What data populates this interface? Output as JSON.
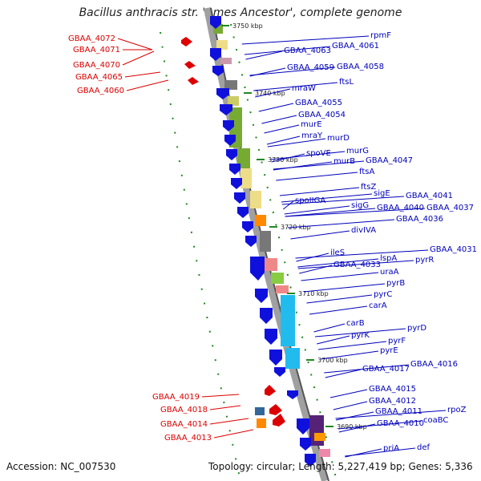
{
  "title": "Bacillus anthracis str. 'Ames Ancestor', complete genome",
  "footer": {
    "accession": "Accession: NC_007530",
    "summary": "Topology: circular; Length: 5,227,419 bp; Genes: 5,336"
  },
  "colors": {
    "left_label": "#dd0000",
    "right_label": "#0000bb",
    "backbone": "#a0a0a0",
    "gene_arrow_forward": "#dd0000",
    "gene_arrow_reverse": "#1010dd",
    "tick": "#228822"
  },
  "scale_ticks": [
    "3750 kbp",
    "3740 kbp",
    "3730 kbp",
    "3720 kbp",
    "3710 kbp",
    "3700 kbp",
    "3690 kbp"
  ],
  "left_labels": [
    "GBAA_4072",
    "GBAA_4071",
    "GBAA_4070",
    "GBAA_4065",
    "GBAA_4060",
    "GBAA_4019",
    "GBAA_4018",
    "GBAA_4014",
    "GBAA_4013"
  ],
  "right_labels": [
    "rpmF",
    "GBAA_4061",
    "GBAA_4063",
    "GBAA_4059",
    "GBAA_4058",
    "ftsL",
    "mraW",
    "GBAA_4055",
    "GBAA_4054",
    "murE",
    "mraY",
    "murD",
    "spoVE",
    "murG",
    "murB",
    "GBAA_4047",
    "ftsA",
    "ftsZ",
    "spoIIGA",
    "sigE",
    "GBAA_4041",
    "sigG",
    "GBAA_4040",
    "GBAA_4037",
    "GBAA_4036",
    "divIVA",
    "ileS",
    "lspA",
    "GBAA_4031",
    "GBAA_4033",
    "pyrR",
    "uraA",
    "pyrB",
    "pyrC",
    "carA",
    "carB",
    "pyrD",
    "pyrK",
    "pyrF",
    "pyrE",
    "GBAA_4016",
    "GBAA_4017",
    "GBAA_4015",
    "GBAA_4012",
    "GBAA_4011",
    "rpoZ",
    "GBAA_4010",
    "coaBC",
    "priA",
    "def"
  ]
}
